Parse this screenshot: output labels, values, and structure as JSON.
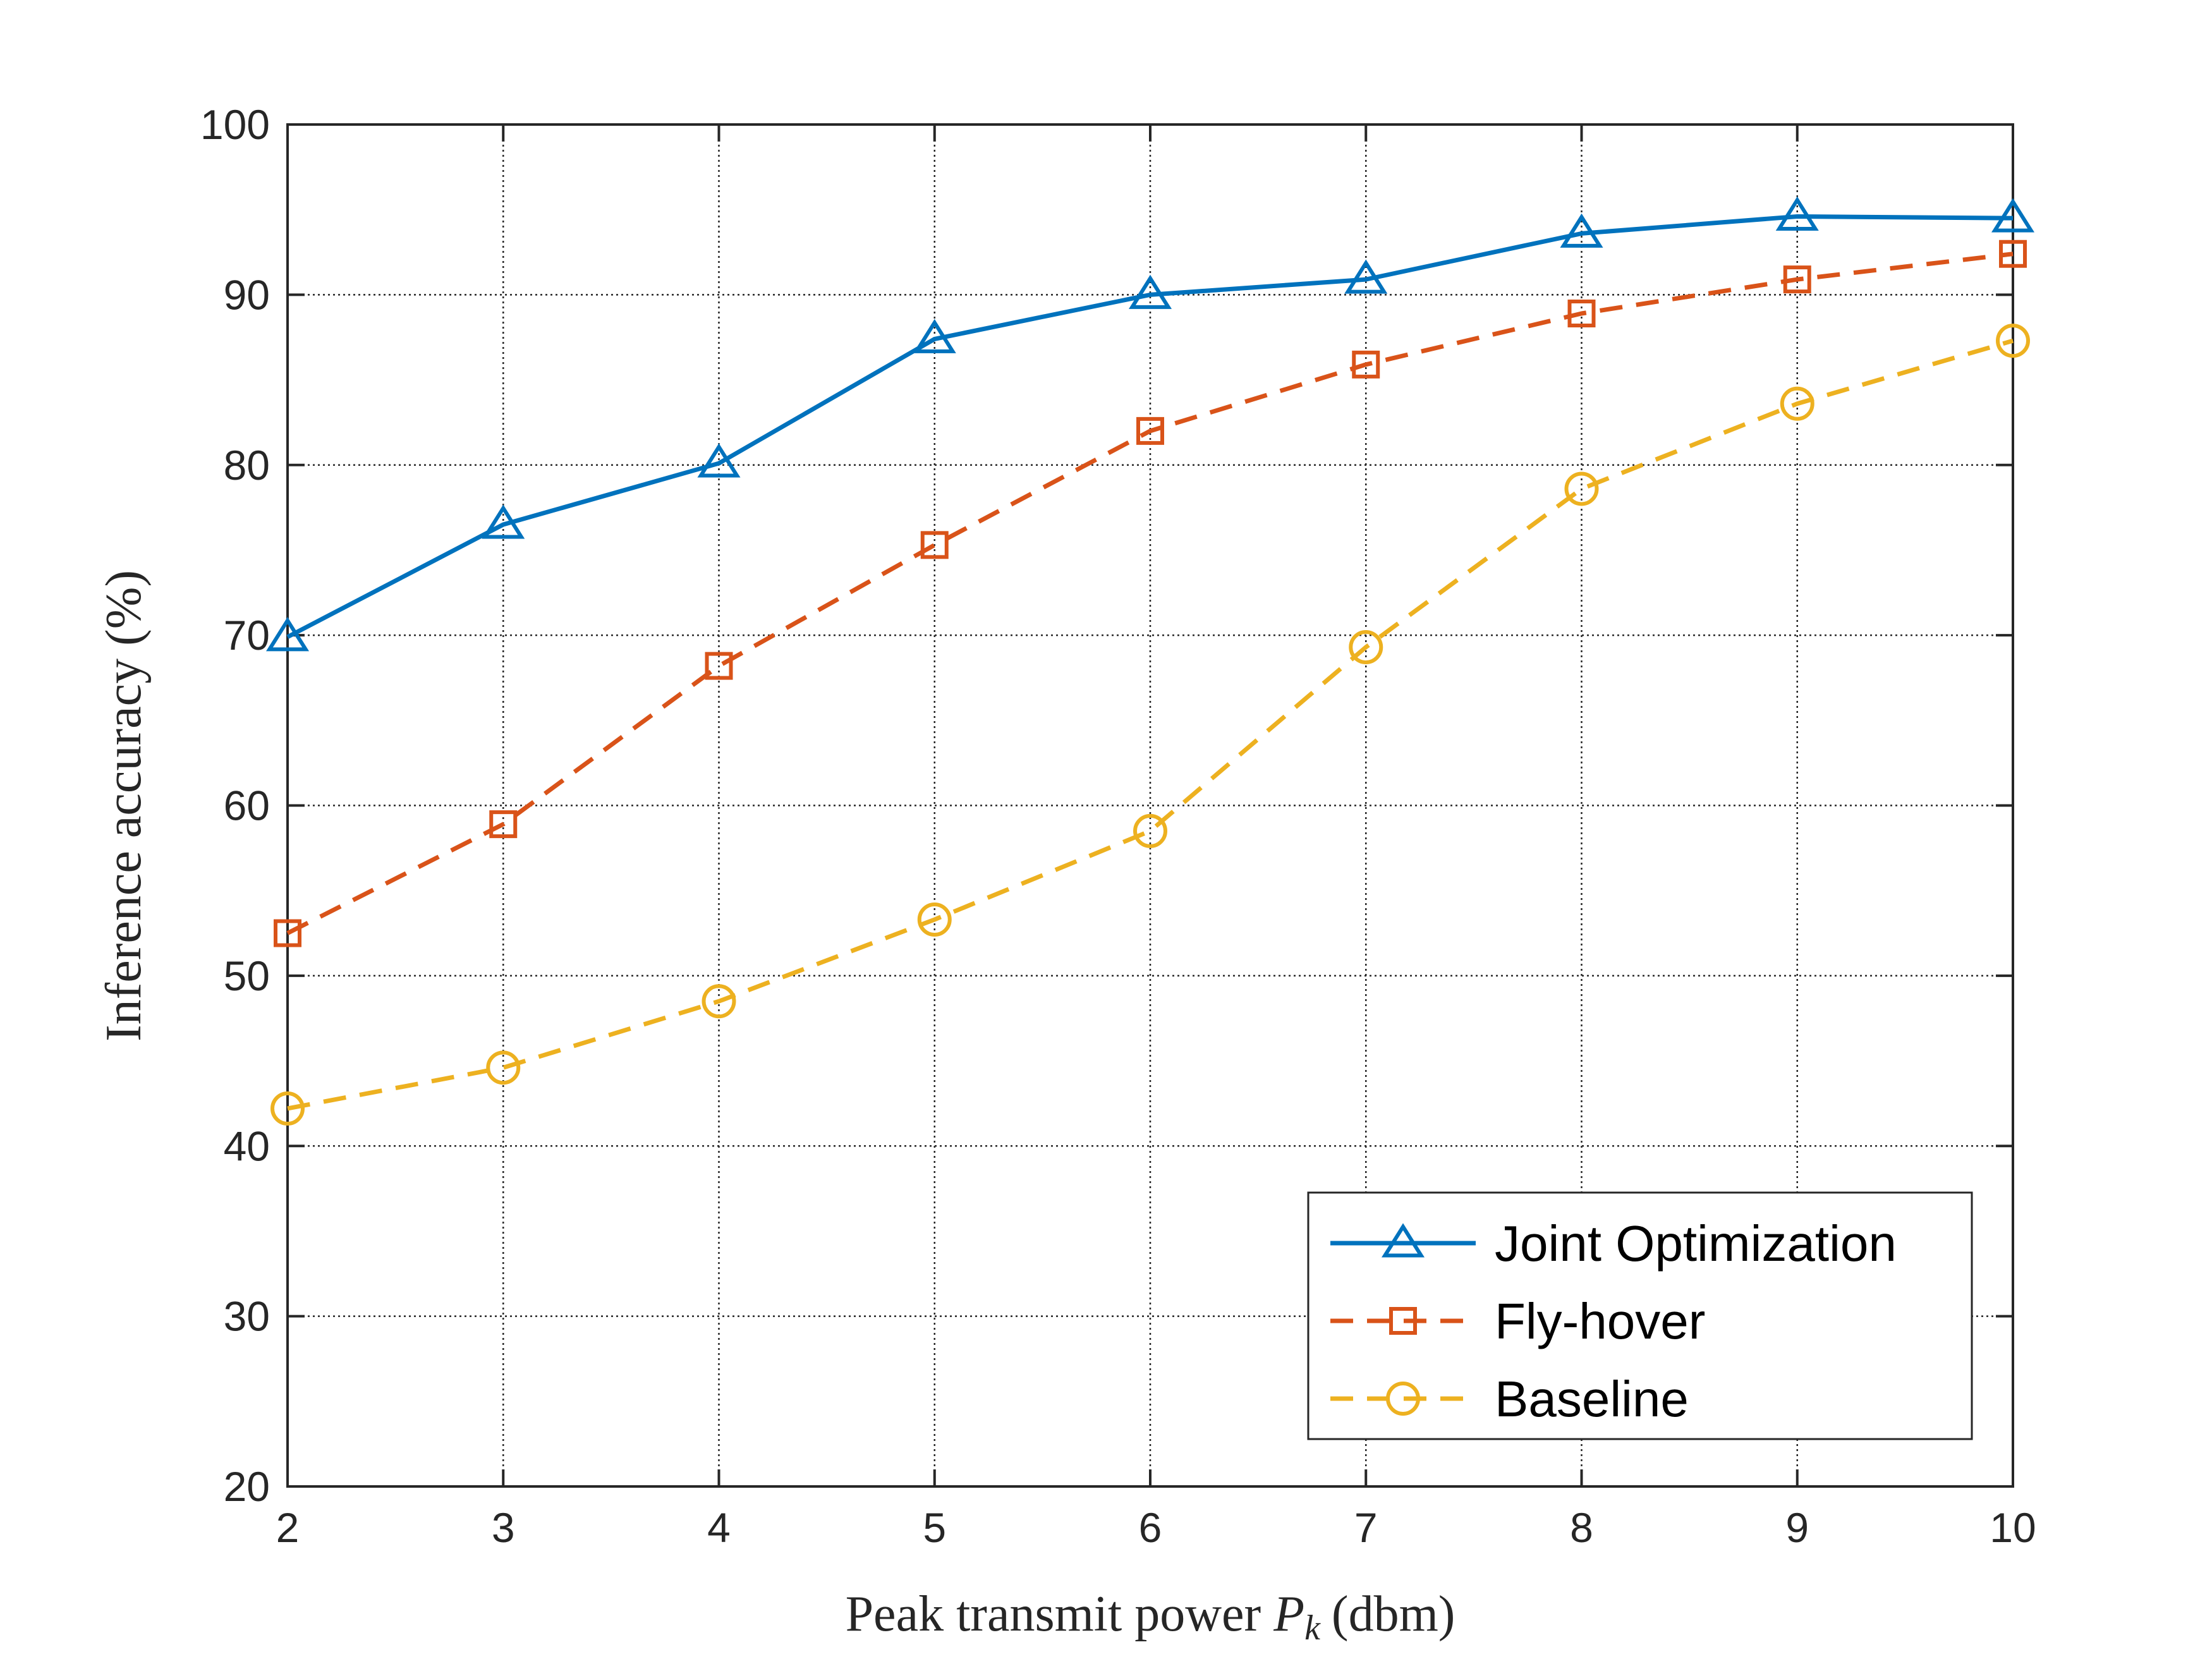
{
  "chart_data": {
    "type": "line",
    "xlabel": "Peak transmit power",
    "xlabel_symbol": "P",
    "xlabel_subscript": "k",
    "xlabel_unit": "(dbm)",
    "ylabel": "Inference accuracy (%)",
    "xlim": [
      2,
      10
    ],
    "ylim": [
      20,
      100
    ],
    "xticks": [
      2,
      3,
      4,
      5,
      6,
      7,
      8,
      9,
      10
    ],
    "yticks": [
      20,
      30,
      40,
      50,
      60,
      70,
      80,
      90,
      100
    ],
    "grid": true,
    "legend_position": "bottom-right",
    "x": [
      2,
      3,
      4,
      5,
      6,
      7,
      8,
      9,
      10
    ],
    "series": [
      {
        "name": "Joint Optimization",
        "values": [
          69.9,
          76.5,
          80.1,
          87.4,
          90.0,
          90.9,
          93.6,
          94.6,
          94.5
        ],
        "color": "#0072BD",
        "marker": "triangle",
        "line_style": "solid"
      },
      {
        "name": "Fly-hover",
        "values": [
          52.5,
          58.9,
          68.2,
          75.3,
          82.0,
          85.9,
          88.9,
          90.9,
          92.4
        ],
        "color": "#D95319",
        "marker": "square",
        "line_style": "dashed"
      },
      {
        "name": "Baseline",
        "values": [
          42.2,
          44.6,
          48.5,
          53.3,
          58.5,
          69.3,
          78.6,
          83.6,
          87.3
        ],
        "color": "#EDB120",
        "marker": "circle",
        "line_style": "dashed"
      }
    ]
  }
}
